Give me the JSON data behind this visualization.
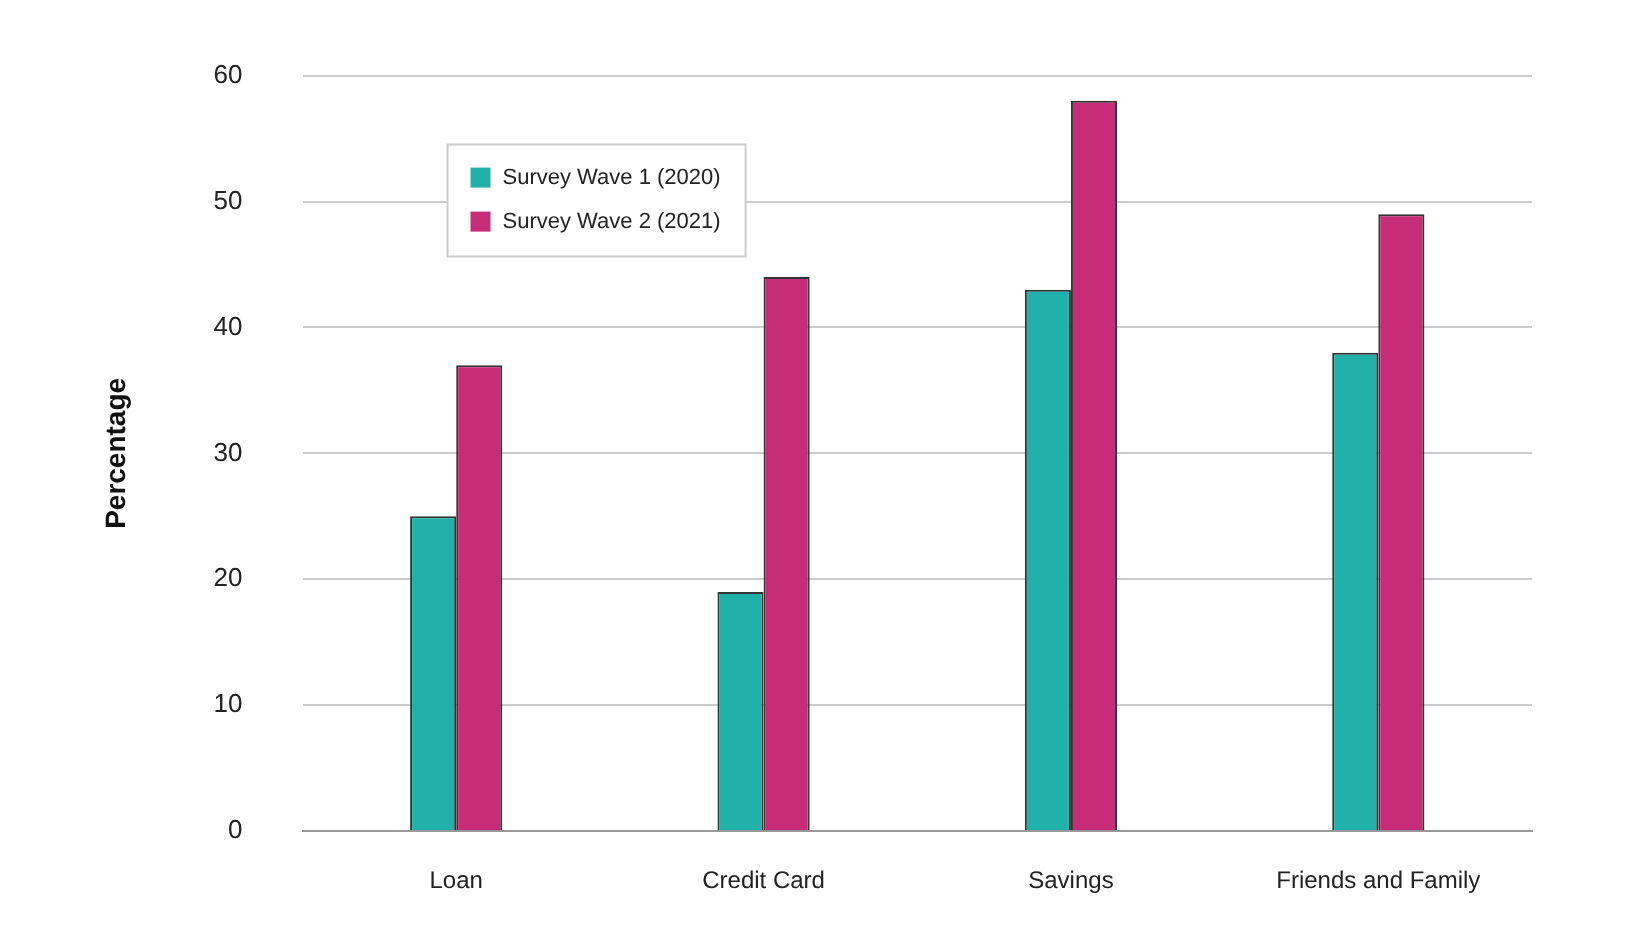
{
  "chart_data": {
    "type": "bar",
    "ylabel": "Percentage",
    "categories": [
      "Loan",
      "Credit Card",
      "Savings",
      "Friends and Family"
    ],
    "series": [
      {
        "name": "Survey Wave 1 (2020)",
        "color": "#20b2aa",
        "values": [
          25,
          19,
          43,
          38
        ]
      },
      {
        "name": "Survey Wave 2 (2021)",
        "color": "#c72c78",
        "values": [
          37,
          44,
          58,
          49
        ]
      }
    ],
    "ylim": [
      0,
      60
    ],
    "yticks": [
      0,
      10,
      20,
      30,
      40,
      50,
      60
    ],
    "grid": "y",
    "legend": "top left"
  }
}
